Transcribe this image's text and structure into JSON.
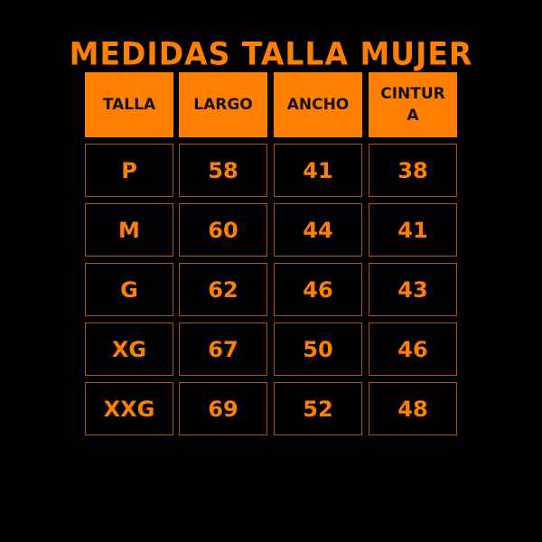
{
  "title": "MEDIDAS TALLA MUJER",
  "colors": {
    "accent": "#ff7f00",
    "background": "#000000"
  },
  "headers": [
    "TALLA",
    "LARGO",
    "ANCHO",
    "CINTURA"
  ],
  "rows": [
    [
      "P",
      "58",
      "41",
      "38"
    ],
    [
      "M",
      "60",
      "44",
      "41"
    ],
    [
      "G",
      "62",
      "46",
      "43"
    ],
    [
      "XG",
      "67",
      "50",
      "46"
    ],
    [
      "XXG",
      "69",
      "52",
      "48"
    ]
  ]
}
